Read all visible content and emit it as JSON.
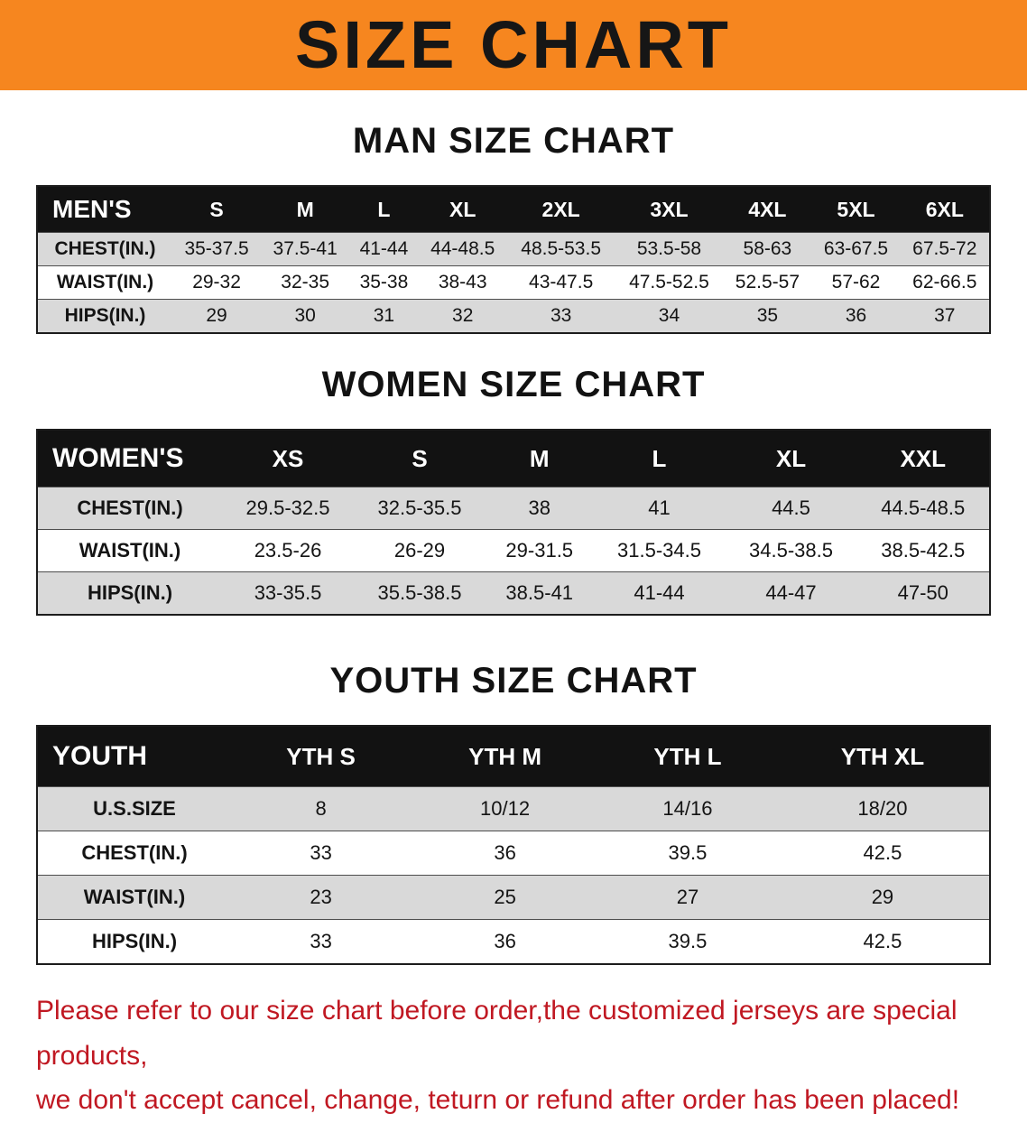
{
  "colors": {
    "banner-bg": "#F6861F",
    "header-bg": "#121212",
    "header-text": "#FFFFFF",
    "stripe": "#D9D9D9",
    "disclaimer": "#C01822",
    "text": "#111111"
  },
  "banner": {
    "title": "SIZE CHART"
  },
  "sections": [
    {
      "heading": "MAN SIZE CHART",
      "table": {
        "label": "MEN'S",
        "columns": [
          "S",
          "M",
          "L",
          "XL",
          "2XL",
          "3XL",
          "4XL",
          "5XL",
          "6XL"
        ],
        "rows": [
          {
            "label": "CHEST(IN.)",
            "values": [
              "35-37.5",
              "37.5-41",
              "41-44",
              "44-48.5",
              "48.5-53.5",
              "53.5-58",
              "58-63",
              "63-67.5",
              "67.5-72"
            ]
          },
          {
            "label": "WAIST(IN.)",
            "values": [
              "29-32",
              "32-35",
              "35-38",
              "38-43",
              "43-47.5",
              "47.5-52.5",
              "52.5-57",
              "57-62",
              "62-66.5"
            ]
          },
          {
            "label": "HIPS(IN.)",
            "values": [
              "29",
              "30",
              "31",
              "32",
              "33",
              "34",
              "35",
              "36",
              "37"
            ]
          }
        ]
      }
    },
    {
      "heading": "WOMEN SIZE CHART",
      "table": {
        "label": "WOMEN'S",
        "columns": [
          "XS",
          "S",
          "M",
          "L",
          "XL",
          "XXL"
        ],
        "rows": [
          {
            "label": "CHEST(IN.)",
            "values": [
              "29.5-32.5",
              "32.5-35.5",
              "38",
              "41",
              "44.5",
              "44.5-48.5"
            ]
          },
          {
            "label": "WAIST(IN.)",
            "values": [
              "23.5-26",
              "26-29",
              "29-31.5",
              "31.5-34.5",
              "34.5-38.5",
              "38.5-42.5"
            ]
          },
          {
            "label": "HIPS(IN.)",
            "values": [
              "33-35.5",
              "35.5-38.5",
              "38.5-41",
              "41-44",
              "44-47",
              "47-50"
            ]
          }
        ]
      }
    },
    {
      "heading": "YOUTH SIZE CHART",
      "table": {
        "label": "YOUTH",
        "columns": [
          "YTH S",
          "YTH M",
          "YTH L",
          "YTH XL"
        ],
        "rows": [
          {
            "label": "U.S.SIZE",
            "values": [
              "8",
              "10/12",
              "14/16",
              "18/20"
            ]
          },
          {
            "label": "CHEST(IN.)",
            "values": [
              "33",
              "36",
              "39.5",
              "42.5"
            ]
          },
          {
            "label": "WAIST(IN.)",
            "values": [
              "23",
              "25",
              "27",
              "29"
            ]
          },
          {
            "label": "HIPS(IN.)",
            "values": [
              "33",
              "36",
              "39.5",
              "42.5"
            ]
          }
        ]
      }
    }
  ],
  "disclaimer": {
    "lines": [
      "Please refer to our size chart before order,the customized jerseys are special products,",
      "we don't accept cancel, change, teturn or refund after order has been placed!"
    ]
  }
}
